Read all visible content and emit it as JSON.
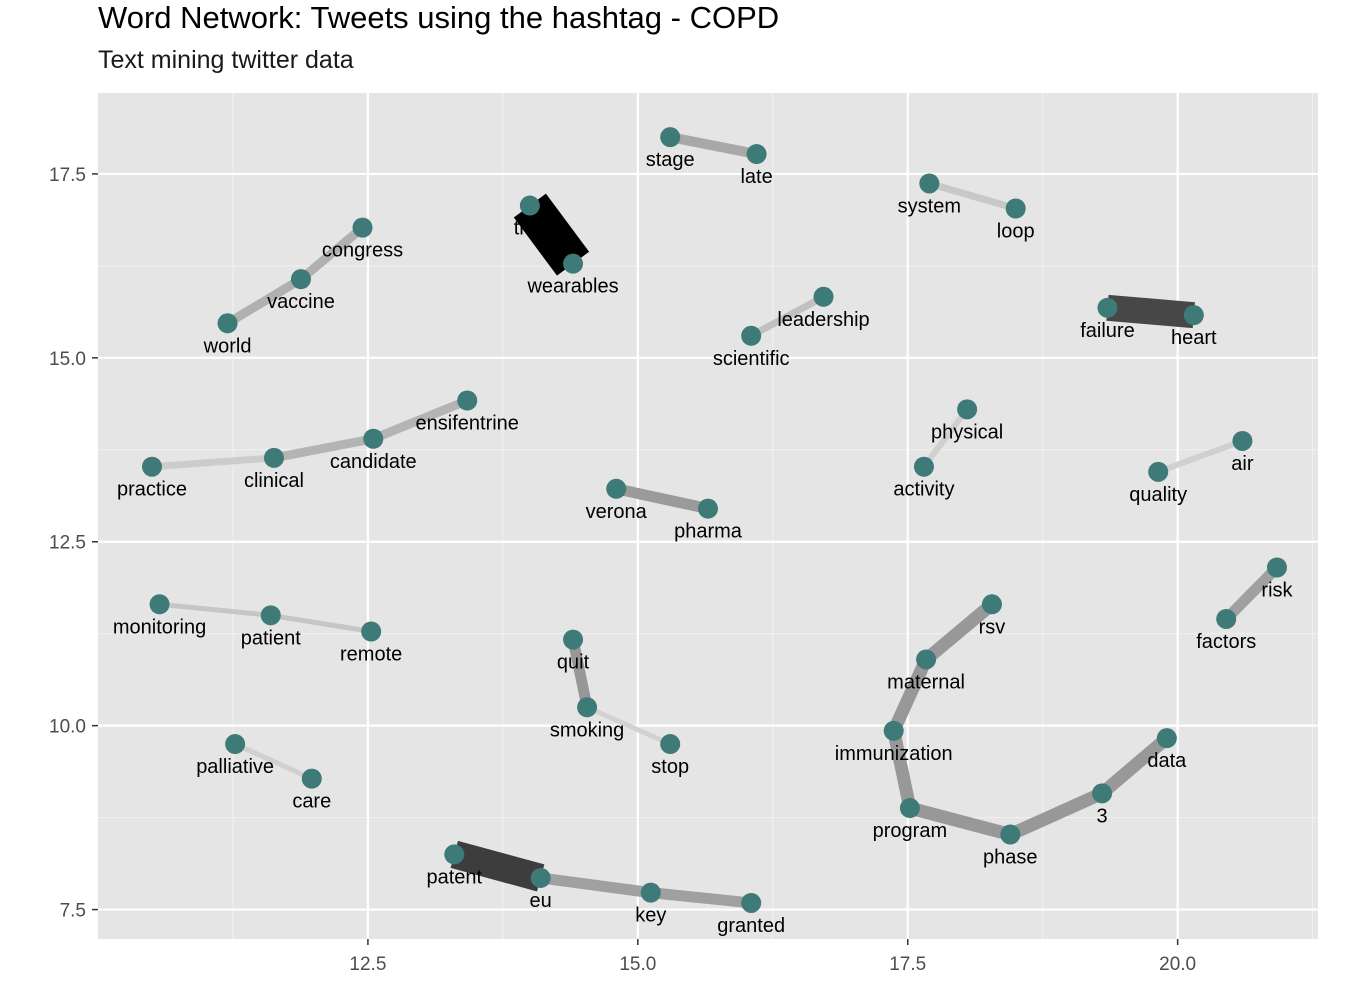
{
  "chart_data": {
    "type": "network",
    "title": "Word Network: Tweets using the hashtag - COPD",
    "subtitle": "Text mining twitter data",
    "xlim": [
      10.0,
      21.3
    ],
    "ylim": [
      7.1,
      18.6
    ],
    "x_ticks": [
      12.5,
      15.0,
      17.5,
      20.0
    ],
    "x_tick_labels": [
      "12.5",
      "15.0",
      "17.5",
      "20.0"
    ],
    "y_ticks": [
      7.5,
      10.0,
      12.5,
      15.0,
      17.5
    ],
    "y_tick_labels": [
      "7.5",
      "10.0",
      "12.5",
      "15.0",
      "17.5"
    ],
    "node_color": "#3d7a78",
    "panel_color": "#e5e5e5",
    "nodes": [
      {
        "word": "stage",
        "x": 15.3,
        "y": 18.0,
        "lx": 0,
        "ly": 1
      },
      {
        "word": "late",
        "x": 16.1,
        "y": 17.77,
        "lx": 0,
        "ly": 1
      },
      {
        "word": "system",
        "x": 17.7,
        "y": 17.37,
        "lx": 0,
        "ly": 1
      },
      {
        "word": "loop",
        "x": 18.5,
        "y": 17.03,
        "lx": 0,
        "ly": 1
      },
      {
        "word": "congress",
        "x": 12.45,
        "y": 16.77,
        "lx": 0,
        "ly": 1
      },
      {
        "word": "vaccine",
        "x": 11.88,
        "y": 16.07,
        "lx": 0,
        "ly": 1
      },
      {
        "word": "world",
        "x": 11.2,
        "y": 15.47,
        "lx": 0,
        "ly": 1
      },
      {
        "word": "trial",
        "x": 14.0,
        "y": 17.07,
        "lx": 0,
        "ly": 1
      },
      {
        "word": "wearables",
        "x": 14.4,
        "y": 16.28,
        "lx": 0,
        "ly": 1
      },
      {
        "word": "leadership",
        "x": 16.72,
        "y": 15.83,
        "lx": 0,
        "ly": 1
      },
      {
        "word": "scientific",
        "x": 16.05,
        "y": 15.3,
        "lx": 0,
        "ly": 1
      },
      {
        "word": "failure",
        "x": 19.35,
        "y": 15.68,
        "lx": 0,
        "ly": 1
      },
      {
        "word": "heart",
        "x": 20.15,
        "y": 15.58,
        "lx": 0,
        "ly": 1
      },
      {
        "word": "ensifentrine",
        "x": 13.42,
        "y": 14.42,
        "lx": 0,
        "ly": 1
      },
      {
        "word": "candidate",
        "x": 12.55,
        "y": 13.9,
        "lx": 0,
        "ly": 1
      },
      {
        "word": "clinical",
        "x": 11.63,
        "y": 13.64,
        "lx": 0,
        "ly": 1
      },
      {
        "word": "practice",
        "x": 10.5,
        "y": 13.52,
        "lx": 0,
        "ly": 1
      },
      {
        "word": "physical",
        "x": 18.05,
        "y": 14.3,
        "lx": 0,
        "ly": 1
      },
      {
        "word": "activity",
        "x": 17.65,
        "y": 13.52,
        "lx": 0,
        "ly": 1
      },
      {
        "word": "air",
        "x": 20.6,
        "y": 13.87,
        "lx": 0,
        "ly": 1
      },
      {
        "word": "quality",
        "x": 19.82,
        "y": 13.45,
        "lx": 0,
        "ly": 1
      },
      {
        "word": "verona",
        "x": 14.8,
        "y": 13.22,
        "lx": 0,
        "ly": 1
      },
      {
        "word": "pharma",
        "x": 15.65,
        "y": 12.95,
        "lx": 0,
        "ly": 1
      },
      {
        "word": "risk",
        "x": 20.92,
        "y": 12.15,
        "lx": 0,
        "ly": 1
      },
      {
        "word": "factors",
        "x": 20.45,
        "y": 11.45,
        "lx": 0,
        "ly": 1
      },
      {
        "word": "monitoring",
        "x": 10.57,
        "y": 11.65,
        "lx": 0,
        "ly": 1
      },
      {
        "word": "patient",
        "x": 11.6,
        "y": 11.5,
        "lx": 0,
        "ly": 1
      },
      {
        "word": "remote",
        "x": 12.53,
        "y": 11.28,
        "lx": 0,
        "ly": 1
      },
      {
        "word": "quit",
        "x": 14.4,
        "y": 11.17,
        "lx": 0,
        "ly": 1
      },
      {
        "word": "smoking",
        "x": 14.53,
        "y": 10.25,
        "lx": 0,
        "ly": 1
      },
      {
        "word": "stop",
        "x": 15.3,
        "y": 9.75,
        "lx": 0,
        "ly": 1
      },
      {
        "word": "rsv",
        "x": 18.28,
        "y": 11.65,
        "lx": 0,
        "ly": 1
      },
      {
        "word": "maternal",
        "x": 17.67,
        "y": 10.9,
        "lx": 0,
        "ly": 1
      },
      {
        "word": "immunization",
        "x": 17.37,
        "y": 9.93,
        "lx": 0,
        "ly": 1
      },
      {
        "word": "program",
        "x": 17.52,
        "y": 8.88,
        "lx": 0,
        "ly": 1
      },
      {
        "word": "phase",
        "x": 18.45,
        "y": 8.52,
        "lx": 0,
        "ly": 1
      },
      {
        "word": "3",
        "x": 19.3,
        "y": 9.08,
        "lx": 0,
        "ly": 1
      },
      {
        "word": "data",
        "x": 19.9,
        "y": 9.83,
        "lx": 0,
        "ly": 1
      },
      {
        "word": "palliative",
        "x": 11.27,
        "y": 9.75,
        "lx": 0,
        "ly": 1
      },
      {
        "word": "care",
        "x": 11.98,
        "y": 9.28,
        "lx": 0,
        "ly": 1
      },
      {
        "word": "patent",
        "x": 13.3,
        "y": 8.25,
        "lx": 0,
        "ly": 1
      },
      {
        "word": "eu",
        "x": 14.1,
        "y": 7.93,
        "lx": 0,
        "ly": 1
      },
      {
        "word": "key",
        "x": 15.12,
        "y": 7.73,
        "lx": 0,
        "ly": 1
      },
      {
        "word": "granted",
        "x": 16.05,
        "y": 7.59,
        "lx": 0,
        "ly": 1
      }
    ],
    "edges": [
      {
        "from": "stage",
        "to": "late",
        "width": 10,
        "shade": "#a8a8a8"
      },
      {
        "from": "system",
        "to": "loop",
        "width": 7,
        "shade": "#c8c8c8"
      },
      {
        "from": "world",
        "to": "vaccine",
        "width": 9,
        "shade": "#b0b0b0"
      },
      {
        "from": "vaccine",
        "to": "congress",
        "width": 9,
        "shade": "#b0b0b0"
      },
      {
        "from": "trial",
        "to": "wearables",
        "width": 40,
        "shade": "#000000"
      },
      {
        "from": "scientific",
        "to": "leadership",
        "width": 7,
        "shade": "#c0c0c0"
      },
      {
        "from": "failure",
        "to": "heart",
        "width": 26,
        "shade": "#474747"
      },
      {
        "from": "practice",
        "to": "clinical",
        "width": 7,
        "shade": "#cccccc"
      },
      {
        "from": "clinical",
        "to": "candidate",
        "width": 9,
        "shade": "#b4b4b4"
      },
      {
        "from": "candidate",
        "to": "ensifentrine",
        "width": 9,
        "shade": "#b4b4b4"
      },
      {
        "from": "activity",
        "to": "physical",
        "width": 6,
        "shade": "#d0d0d0"
      },
      {
        "from": "quality",
        "to": "air",
        "width": 6,
        "shade": "#d0d0d0"
      },
      {
        "from": "verona",
        "to": "pharma",
        "width": 11,
        "shade": "#9a9a9a"
      },
      {
        "from": "factors",
        "to": "risk",
        "width": 11,
        "shade": "#a0a0a0"
      },
      {
        "from": "monitoring",
        "to": "patient",
        "width": 5,
        "shade": "#c6c6c6"
      },
      {
        "from": "patient",
        "to": "remote",
        "width": 5,
        "shade": "#c6c6c6"
      },
      {
        "from": "quit",
        "to": "smoking",
        "width": 11,
        "shade": "#979797"
      },
      {
        "from": "smoking",
        "to": "stop",
        "width": 5,
        "shade": "#d2d2d2"
      },
      {
        "from": "rsv",
        "to": "maternal",
        "width": 13,
        "shade": "#989898"
      },
      {
        "from": "maternal",
        "to": "immunization",
        "width": 13,
        "shade": "#989898"
      },
      {
        "from": "immunization",
        "to": "program",
        "width": 13,
        "shade": "#989898"
      },
      {
        "from": "program",
        "to": "phase",
        "width": 13,
        "shade": "#989898"
      },
      {
        "from": "phase",
        "to": "3",
        "width": 13,
        "shade": "#989898"
      },
      {
        "from": "3",
        "to": "data",
        "width": 13,
        "shade": "#989898"
      },
      {
        "from": "palliative",
        "to": "care",
        "width": 5,
        "shade": "#d0d0d0"
      },
      {
        "from": "patent",
        "to": "eu",
        "width": 28,
        "shade": "#3d3d3d"
      },
      {
        "from": "eu",
        "to": "key",
        "width": 11,
        "shade": "#a0a0a0"
      },
      {
        "from": "key",
        "to": "granted",
        "width": 11,
        "shade": "#a0a0a0"
      }
    ]
  }
}
